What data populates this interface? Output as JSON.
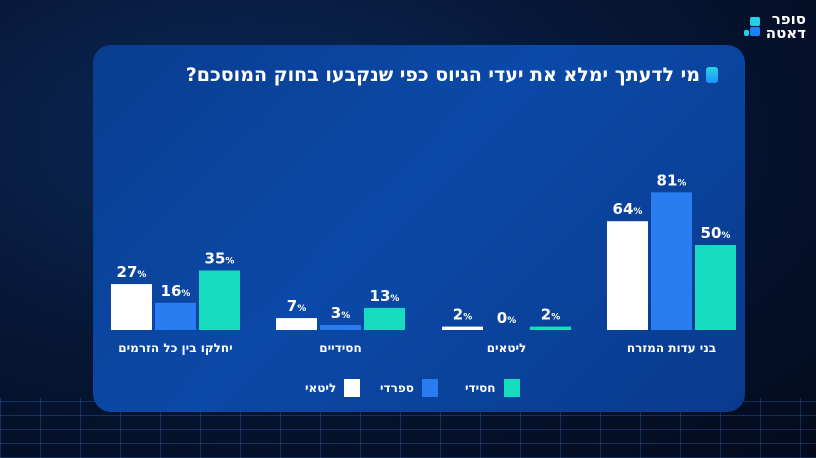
{
  "logo": {
    "line1": "סופר",
    "line2": "דאטה"
  },
  "title": "מי לדעתך ימלא את יעדי הגיוס כפי שנקבעו בחוק המוסכם?",
  "chart_data": {
    "type": "bar",
    "title": "מי לדעתך ימלא את יעדי הגיוס כפי שנקבעו בחוק המוסכם?",
    "categories": [
      "בני עדות המזרח",
      "ליטאים",
      "חסידיים",
      "יחלקו בין כל הזרמים"
    ],
    "series": [
      {
        "name": "ליטאי",
        "color": "#ffffff",
        "values": [
          64,
          2,
          7,
          27
        ]
      },
      {
        "name": "ספרדי",
        "color": "#2a7df0",
        "values": [
          81,
          0,
          3,
          16
        ]
      },
      {
        "name": "חסידי",
        "color": "#18dcc0",
        "values": [
          50,
          2,
          13,
          35
        ]
      }
    ],
    "value_suffix": "%",
    "legend": "bottom",
    "grid": false,
    "ylim": [
      0,
      100
    ]
  }
}
